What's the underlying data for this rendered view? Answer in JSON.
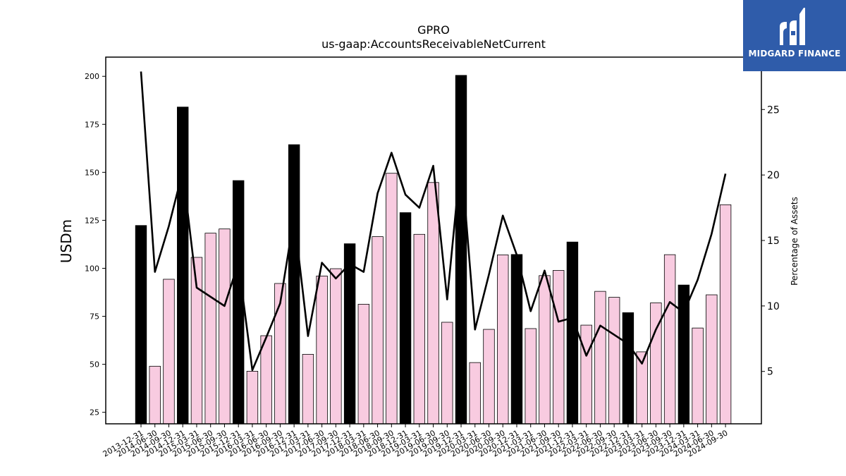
{
  "chart_data": {
    "type": "bar",
    "title": "GPRO",
    "subtitle": "us-gaap:AccountsReceivableNetCurrent",
    "ylabel": "USDm",
    "y2label": "Percentage of Assets",
    "ylim": [
      19,
      210
    ],
    "y2lim": [
      1,
      29
    ],
    "yticks": [
      25,
      50,
      75,
      100,
      125,
      150,
      175,
      200
    ],
    "y2ticks": [
      5,
      10,
      15,
      20,
      25
    ],
    "grid": false,
    "categories": [
      "2013-12-31",
      "2014-06-30",
      "2014-09-30",
      "2014-12-31",
      "2015-03-31",
      "2015-06-30",
      "2015-09-30",
      "2015-12-31",
      "2016-03-31",
      "2016-06-30",
      "2016-09-30",
      "2016-12-31",
      "2017-03-31",
      "2017-06-30",
      "2017-09-30",
      "2017-12-31",
      "2018-03-31",
      "2018-06-30",
      "2018-09-30",
      "2018-12-31",
      "2019-03-31",
      "2019-06-30",
      "2019-09-30",
      "2019-12-31",
      "2020-03-31",
      "2020-06-30",
      "2020-09-30",
      "2020-12-31",
      "2021-03-31",
      "2021-06-30",
      "2021-09-30",
      "2021-12-31",
      "2022-03-31",
      "2022-06-30",
      "2022-09-30",
      "2022-12-31",
      "2023-03-31",
      "2023-06-30",
      "2023-09-30",
      "2023-12-31",
      "2024-03-31",
      "2024-06-30",
      "2024-09-30"
    ],
    "series": [
      {
        "type": "bar",
        "axis": "left",
        "values": [
          122.3,
          49.0,
          94.3,
          184.0,
          105.7,
          118.3,
          120.5,
          145.7,
          46.4,
          64.9,
          92.1,
          164.4,
          55.2,
          96.0,
          99.8,
          112.8,
          81.3,
          116.5,
          149.5,
          129.0,
          117.7,
          144.7,
          71.9,
          200.5,
          50.9,
          68.2,
          107.0,
          107.2,
          68.6,
          96.2,
          98.9,
          113.7,
          70.4,
          88.0,
          84.9,
          76.9,
          56.5,
          82.0,
          107.1,
          91.3,
          68.9,
          86.2,
          133.1
        ],
        "year_end": [
          true,
          false,
          false,
          true,
          false,
          false,
          false,
          true,
          false,
          false,
          false,
          true,
          false,
          false,
          false,
          true,
          false,
          false,
          false,
          true,
          false,
          false,
          false,
          true,
          false,
          false,
          false,
          true,
          false,
          false,
          false,
          true,
          false,
          false,
          false,
          true,
          false,
          false,
          false,
          true,
          false,
          false,
          false
        ]
      },
      {
        "type": "line",
        "axis": "right",
        "values": [
          27.9,
          12.6,
          16.1,
          20.3,
          11.4,
          10.7,
          10.0,
          13.3,
          5.1,
          7.6,
          10.2,
          16.8,
          7.7,
          13.3,
          12.1,
          13.2,
          12.6,
          18.6,
          21.7,
          18.5,
          17.5,
          20.7,
          10.5,
          21.4,
          8.2,
          12.4,
          16.9,
          13.9,
          9.6,
          12.7,
          8.8,
          9.1,
          6.2,
          8.5,
          7.8,
          7.1,
          5.6,
          8.2,
          10.3,
          9.5,
          12.0,
          15.5,
          20.1
        ]
      }
    ],
    "colors": {
      "bar_year_end": "#000000",
      "bar_other": "#f8cbe0",
      "line": "#000000",
      "logo_bg": "#2f5caa"
    }
  },
  "logo": {
    "text": "MIDGARD FINANCE"
  }
}
